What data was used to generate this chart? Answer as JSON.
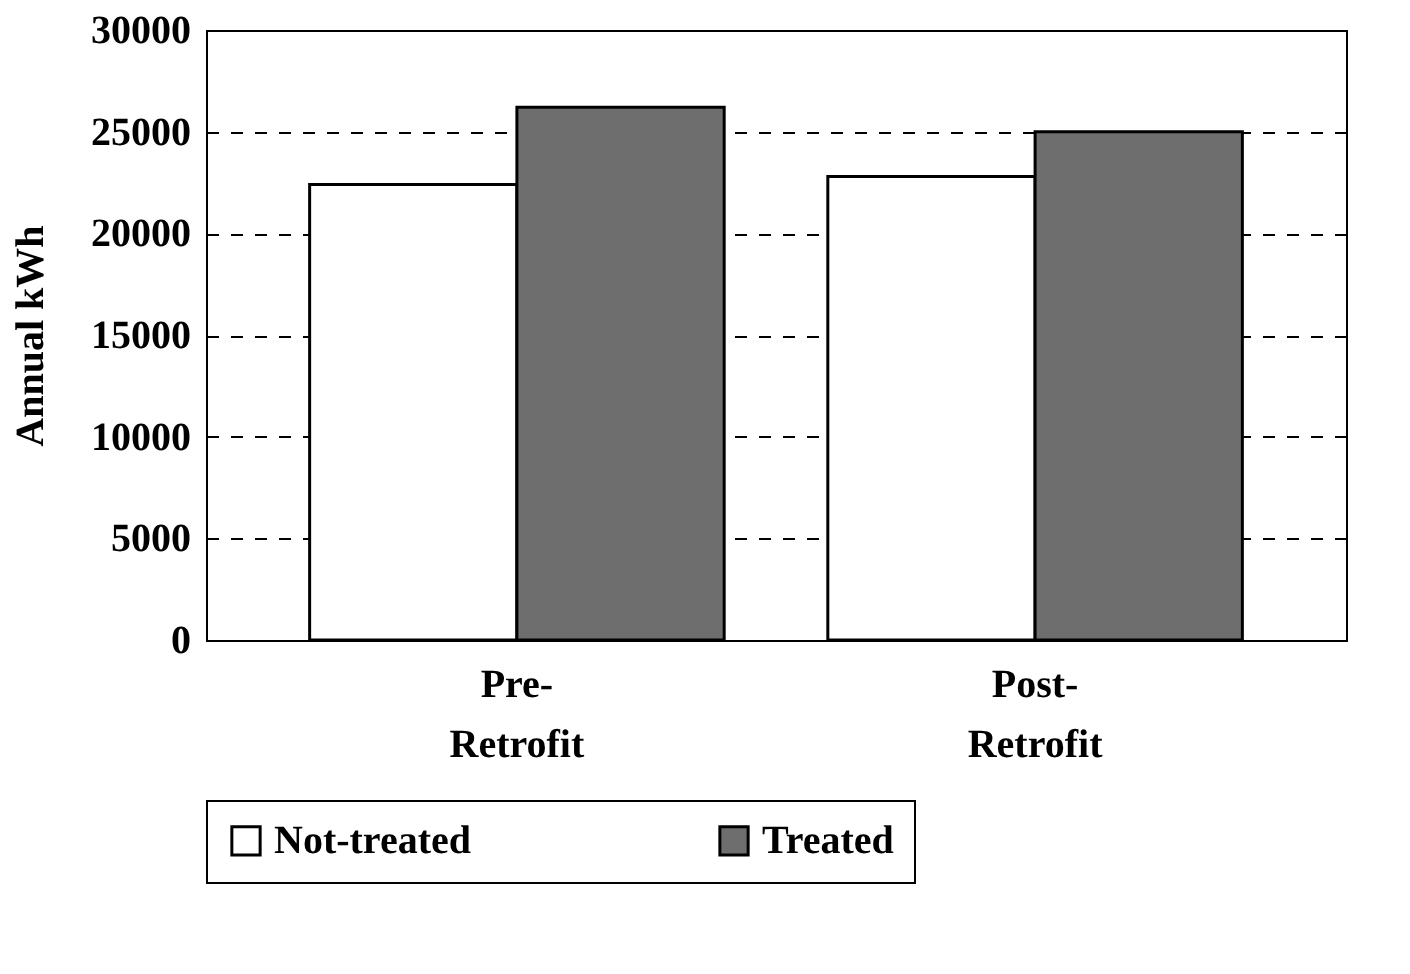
{
  "chart_data": {
    "type": "bar",
    "ylabel": "Annual kWh",
    "categories": [
      "Pre-\nRetrofit",
      "Post-\nRetrofit"
    ],
    "series": [
      {
        "name": "Not-treated",
        "color": "#ffffff",
        "values": [
          22400,
          22800
        ]
      },
      {
        "name": "Treated",
        "color": "#6e6e6e",
        "values": [
          26200,
          25000
        ]
      }
    ],
    "ylim": [
      0,
      30000
    ],
    "yticks": [
      0,
      5000,
      10000,
      15000,
      20000,
      25000,
      30000
    ],
    "grid": "y",
    "legend": "bottom"
  }
}
